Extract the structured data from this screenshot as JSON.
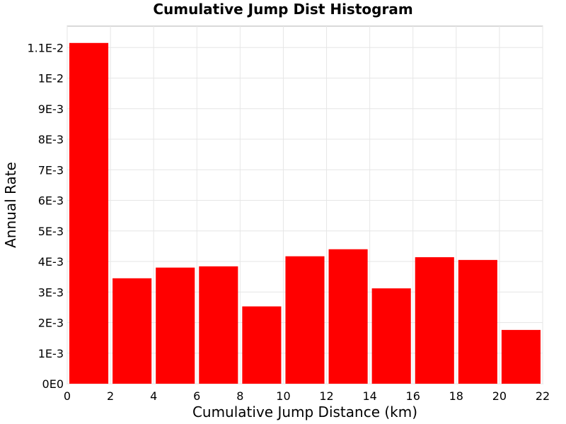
{
  "chart_data": {
    "type": "bar",
    "title": "Cumulative Jump Dist Histogram",
    "xlabel": "Cumulative Jump Distance (km)",
    "ylabel": "Annual Rate",
    "xlim": [
      0,
      22
    ],
    "ylim": [
      0,
      0.0117
    ],
    "x_ticks": [
      {
        "value": 0,
        "label": "0"
      },
      {
        "value": 2,
        "label": "2"
      },
      {
        "value": 4,
        "label": "4"
      },
      {
        "value": 6,
        "label": "6"
      },
      {
        "value": 8,
        "label": "8"
      },
      {
        "value": 10,
        "label": "10"
      },
      {
        "value": 12,
        "label": "12"
      },
      {
        "value": 14,
        "label": "14"
      },
      {
        "value": 16,
        "label": "16"
      },
      {
        "value": 18,
        "label": "18"
      },
      {
        "value": 20,
        "label": "20"
      },
      {
        "value": 22,
        "label": "22"
      }
    ],
    "y_ticks": [
      {
        "value": 0,
        "label": "0E0"
      },
      {
        "value": 0.001,
        "label": "1E-3"
      },
      {
        "value": 0.002,
        "label": "2E-3"
      },
      {
        "value": 0.003,
        "label": "3E-3"
      },
      {
        "value": 0.004,
        "label": "4E-3"
      },
      {
        "value": 0.005,
        "label": "5E-3"
      },
      {
        "value": 0.006,
        "label": "6E-3"
      },
      {
        "value": 0.007,
        "label": "7E-3"
      },
      {
        "value": 0.008,
        "label": "8E-3"
      },
      {
        "value": 0.009,
        "label": "9E-3"
      },
      {
        "value": 0.01,
        "label": "1E-2"
      },
      {
        "value": 0.011,
        "label": "1.1E-2"
      }
    ],
    "bars": [
      {
        "x_start": 0,
        "x_end": 2,
        "value": 0.01115
      },
      {
        "x_start": 2,
        "x_end": 4,
        "value": 0.00345
      },
      {
        "x_start": 4,
        "x_end": 6,
        "value": 0.0038
      },
      {
        "x_start": 6,
        "x_end": 8,
        "value": 0.00384
      },
      {
        "x_start": 8,
        "x_end": 10,
        "value": 0.00253
      },
      {
        "x_start": 10,
        "x_end": 12,
        "value": 0.00417
      },
      {
        "x_start": 12,
        "x_end": 14,
        "value": 0.0044
      },
      {
        "x_start": 14,
        "x_end": 16,
        "value": 0.00312
      },
      {
        "x_start": 16,
        "x_end": 18,
        "value": 0.00414
      },
      {
        "x_start": 18,
        "x_end": 20,
        "value": 0.00405
      },
      {
        "x_start": 20,
        "x_end": 22,
        "value": 0.00176
      }
    ],
    "bar_color": "#ff0000",
    "grid": true,
    "legend": "none"
  }
}
